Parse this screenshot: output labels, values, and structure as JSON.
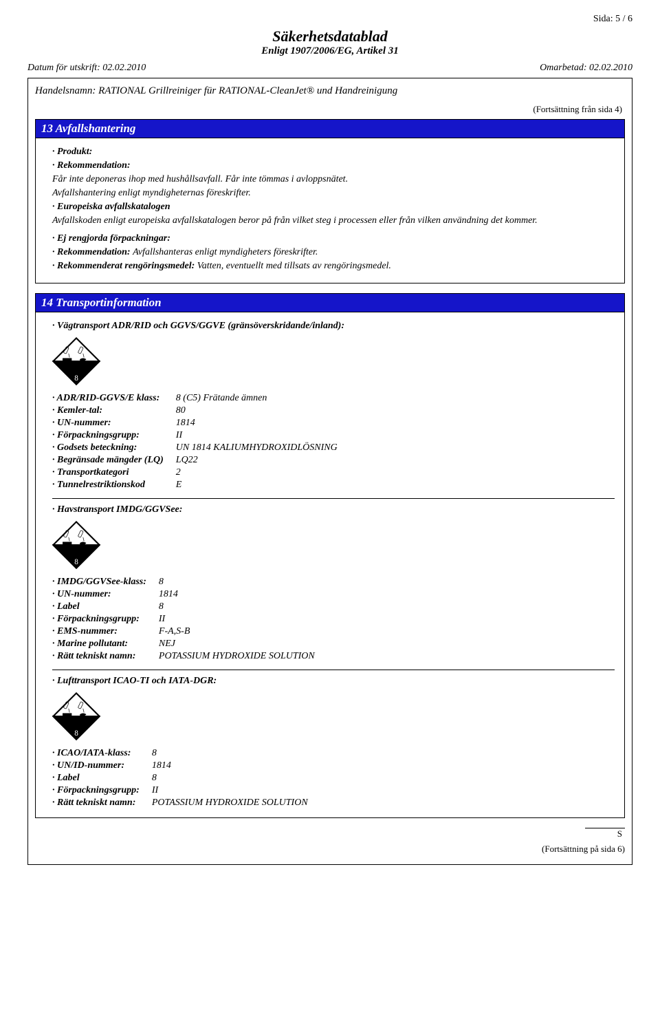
{
  "page_number": "Sida: 5 / 6",
  "doc_title": "Säkerhetsdatablad",
  "doc_subtitle": "Enligt 1907/2006/EG, Artikel 31",
  "date_print_label": "Datum för utskrift: 02.02.2010",
  "date_revised_label": "Omarbetad: 02.02.2010",
  "trade_name": "Handelsnamn: RATIONAL Grillreiniger für RATIONAL-CleanJet® und Handreinigung",
  "cont_from": "(Fortsättning från sida 4)",
  "section13": {
    "title": "13 Avfallshantering",
    "product_label": "· Produkt:",
    "rec_label": "· Rekommendation:",
    "rec_text1": "Får inte deponeras ihop med hushållsavfall. Får inte tömmas i avloppsnätet.",
    "rec_text2": "Avfallshantering enligt myndigheternas föreskrifter.",
    "ewc_label": "· Europeiska avfallskatalogen",
    "ewc_text": "Avfallskoden enligt europeiska avfallskatalogen beror på från vilket steg i processen eller från vilken användning det kommer.",
    "unclean_label": "· Ej rengjorda förpackningar:",
    "unclean_rec_label": "· Rekommendation:",
    "unclean_rec_text": "Avfallshanteras enligt myndigheters föreskrifter.",
    "cleanser_label": "· Rekommenderat rengöringsmedel:",
    "cleanser_text": "Vatten, eventuellt med tillsats av rengöringsmedel."
  },
  "section14": {
    "title": "14 Transportinformation",
    "road_heading": "· Vägtransport ADR/RID och GGVS/GGVE (gränsöverskridande/inland):",
    "road": [
      {
        "k": "· ADR/RID-GGVS/E klass:",
        "v": "8 (C5) Frätande ämnen"
      },
      {
        "k": "· Kemler-tal:",
        "v": "80"
      },
      {
        "k": "· UN-nummer:",
        "v": "1814"
      },
      {
        "k": "· Förpackningsgrupp:",
        "v": "II"
      },
      {
        "k": "· Godsets beteckning:",
        "v": "UN 1814 KALIUMHYDROXIDLÖSNING"
      },
      {
        "k": "· Begränsade mängder (LQ)",
        "v": "LQ22"
      },
      {
        "k": "· Transportkategori",
        "v": "2"
      },
      {
        "k": "· Tunnelrestriktionskod",
        "v": "E"
      }
    ],
    "sea_heading": "· Havstransport IMDG/GGVSee:",
    "sea": [
      {
        "k": "· IMDG/GGVSee-klass:",
        "v": "8"
      },
      {
        "k": "· UN-nummer:",
        "v": "1814"
      },
      {
        "k": "· Label",
        "v": "8"
      },
      {
        "k": "· Förpackningsgrupp:",
        "v": "II"
      },
      {
        "k": "· EMS-nummer:",
        "v": "F-A,S-B"
      },
      {
        "k": "· Marine pollutant:",
        "v": "NEJ"
      },
      {
        "k": "· Rätt tekniskt namn:",
        "v": "POTASSIUM HYDROXIDE SOLUTION"
      }
    ],
    "air_heading": "· Lufttransport ICAO-TI och IATA-DGR:",
    "air": [
      {
        "k": "· ICAO/IATA-klass:",
        "v": "8"
      },
      {
        "k": "· UN/ID-nummer:",
        "v": "1814"
      },
      {
        "k": "· Label",
        "v": "8"
      },
      {
        "k": "· Förpackningsgrupp:",
        "v": "II"
      },
      {
        "k": "· Rätt tekniskt namn:",
        "v": "POTASSIUM HYDROXIDE SOLUTION"
      }
    ]
  },
  "footer_s": "S",
  "cont_to": "(Fortsättning på sida 6)",
  "hazard_svg": {
    "border": "#000",
    "bg_top": "#fff",
    "bg_bottom": "#000",
    "label": "8"
  }
}
